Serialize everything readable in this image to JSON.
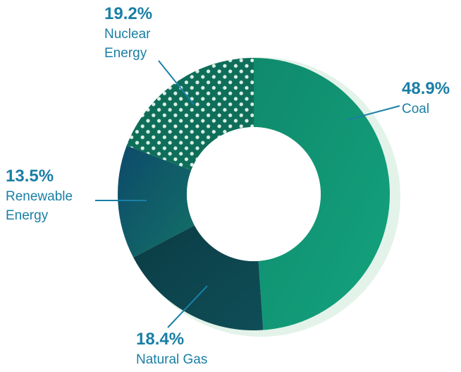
{
  "chart_data": {
    "type": "pie",
    "style": "donut",
    "slices": [
      {
        "label_lines": [
          "Coal"
        ],
        "value": 48.9,
        "value_text": "48.9%",
        "color": "#0f8a6c",
        "color_end": "#14a37e"
      },
      {
        "label_lines": [
          "Natural Gas"
        ],
        "value": 18.4,
        "value_text": "18.4%",
        "color": "#0b3c45",
        "color_end": "#0f4e57"
      },
      {
        "label_lines": [
          "Renewable",
          "Energy"
        ],
        "value": 13.5,
        "value_text": "13.5%",
        "color": "#0d4a6a",
        "color_end": "#137066"
      },
      {
        "label_lines": [
          "Nuclear",
          "Energy"
        ],
        "value": 19.2,
        "value_text": "19.2%",
        "color": "#0f6e5a",
        "pattern": "dots",
        "dot_color": "#d9f0e4"
      }
    ],
    "label_color": "#1a7fa6",
    "shadow_color": "#e3f3ea"
  }
}
